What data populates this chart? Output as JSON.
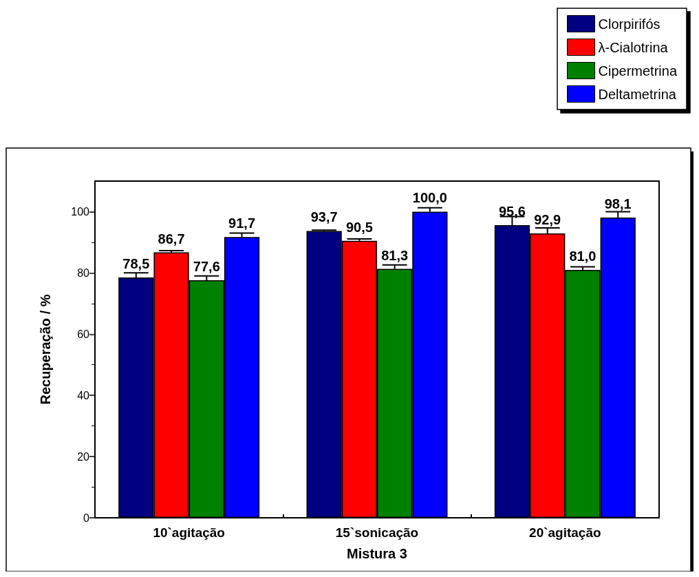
{
  "chart_data": {
    "type": "bar",
    "xlabel": "Mistura 3",
    "ylabel": "Recuperação / %",
    "categories": [
      "10`agitação",
      "15`sonicação",
      "20`agitação"
    ],
    "series": [
      {
        "name": "Clorpirifós",
        "color": "#000080",
        "values": [
          78.5,
          93.7,
          95.6
        ],
        "value_labels": [
          "78,5",
          "93,7",
          "95,6"
        ],
        "errors": [
          [
            78.5,
            80.0
          ],
          [
            93.7,
            94.0
          ],
          [
            95.6,
            98.4
          ]
        ]
      },
      {
        "name": "λ-Cialotrina",
        "color": "#ff0000",
        "values": [
          86.7,
          90.5,
          92.9
        ],
        "value_labels": [
          "86,7",
          "90,5",
          "92,9"
        ],
        "errors": [
          [
            86.7,
            87.3
          ],
          [
            90.5,
            91.1
          ],
          [
            92.9,
            94.7
          ]
        ]
      },
      {
        "name": "Cipermetrina",
        "color": "#008000",
        "values": [
          77.6,
          81.3,
          81.0
        ],
        "value_labels": [
          "77,6",
          "81,3",
          "81,0"
        ],
        "errors": [
          [
            77.6,
            79.0
          ],
          [
            81.3,
            82.6
          ],
          [
            81.0,
            82.0
          ]
        ]
      },
      {
        "name": "Deltametrina",
        "color": "#0000ff",
        "values": [
          91.7,
          100.0,
          98.1
        ],
        "value_labels": [
          "91,7",
          "100,0",
          "98,1"
        ],
        "errors": [
          [
            91.7,
            93.0
          ],
          [
            100.0,
            101.3
          ],
          [
            98.1,
            100.0
          ]
        ]
      }
    ],
    "ylim": [
      0,
      110
    ],
    "yticks": [
      0,
      20,
      40,
      60,
      80,
      100
    ],
    "legend": "top right",
    "grid": false
  }
}
